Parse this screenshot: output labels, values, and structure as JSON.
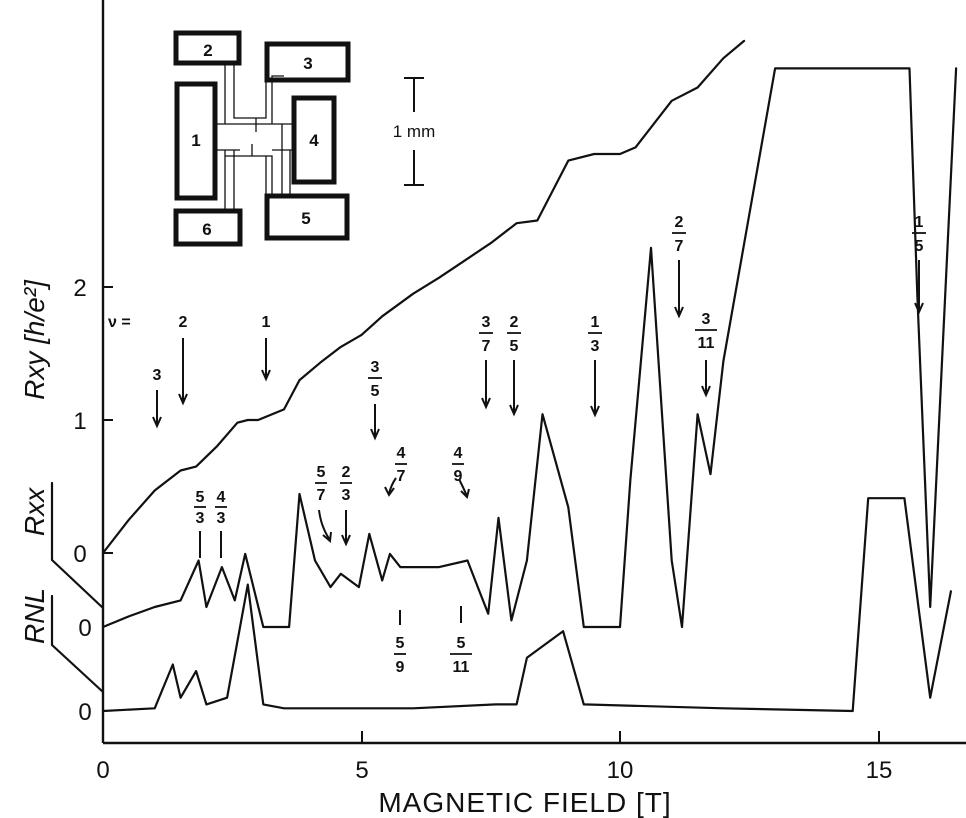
{
  "chart_data": {
    "type": "line",
    "title": "",
    "xlabel": "MAGNETIC FIELD [T]",
    "xlim": [
      0,
      16.5
    ],
    "x_ticks": [
      "0",
      "5",
      "10",
      "15"
    ],
    "ylabels": {
      "rxy": "Rxy [h/e²]",
      "rxx": "Rxx",
      "rnl": "RNL"
    },
    "rxy_ticks": [
      "0",
      "1",
      "2"
    ],
    "rxx_zero_label": "0",
    "rnl_zero_label": "0",
    "series": [
      {
        "name": "Rxy",
        "x": [
          0,
          0.5,
          1.0,
          1.5,
          1.8,
          2.2,
          2.6,
          2.8,
          3.0,
          3.5,
          3.8,
          4.2,
          4.6,
          5.0,
          5.4,
          6.0,
          6.5,
          7.0,
          7.5,
          8.0,
          8.4,
          9.0,
          9.5,
          10.0,
          10.3,
          11.0,
          11.5,
          12.0,
          12.4
        ],
        "y": [
          0,
          0.25,
          0.47,
          0.62,
          0.65,
          0.8,
          0.98,
          1.0,
          1.0,
          1.08,
          1.3,
          1.43,
          1.55,
          1.64,
          1.78,
          1.95,
          2.07,
          2.2,
          2.33,
          2.48,
          2.5,
          2.95,
          3.0,
          3.0,
          3.05,
          3.4,
          3.5,
          3.72,
          3.85
        ]
      },
      {
        "name": "Rxx",
        "x": [
          0,
          0.5,
          1.0,
          1.5,
          1.85,
          2.0,
          2.3,
          2.55,
          2.75,
          3.1,
          3.6,
          3.8,
          4.1,
          4.4,
          4.6,
          4.95,
          5.15,
          5.4,
          5.55,
          5.75,
          6.5,
          7.05,
          7.25,
          7.45,
          7.65,
          7.9,
          8.2,
          8.5,
          9.0,
          9.3,
          10.0,
          10.2,
          10.6,
          11.0,
          11.2,
          11.5,
          11.75,
          12.0,
          13.0,
          15.6,
          15.75,
          16.0,
          16.5
        ],
        "y": [
          0,
          0.08,
          0.15,
          0.2,
          0.5,
          0.15,
          0.45,
          0.2,
          0.55,
          0,
          0,
          1.0,
          0.5,
          0.3,
          0.4,
          0.3,
          0.7,
          0.35,
          0.55,
          0.45,
          0.45,
          0.5,
          0.3,
          0.1,
          0.82,
          0.05,
          0.5,
          1.6,
          0.9,
          0,
          0,
          1.1,
          2.85,
          0.5,
          0,
          1.6,
          1.15,
          2.0,
          4.2,
          4.2,
          2.5,
          0.15,
          4.2
        ]
      },
      {
        "name": "RNL",
        "x": [
          0,
          1.0,
          1.35,
          1.5,
          1.8,
          2.0,
          2.4,
          2.8,
          3.1,
          3.5,
          6.0,
          7.6,
          8.0,
          8.2,
          8.9,
          9.3,
          12.0,
          14.5,
          14.8,
          15.2,
          15.5,
          16.0,
          16.4
        ],
        "y": [
          0,
          0.02,
          0.35,
          0.1,
          0.3,
          0.05,
          0.1,
          0.95,
          0.05,
          0.02,
          0.02,
          0.05,
          0.05,
          0.4,
          0.6,
          0.05,
          0.02,
          0.0,
          1.6,
          1.6,
          1.6,
          0.1,
          0.9
        ]
      }
    ],
    "annotations": {
      "nu_label": "ν =",
      "integer_fillings": [
        "3",
        "2",
        "1"
      ],
      "rxy_fractions": [
        {
          "num": "3",
          "den": "5"
        },
        {
          "num": "3",
          "den": "7"
        },
        {
          "num": "2",
          "den": "5"
        },
        {
          "num": "1",
          "den": "3"
        },
        {
          "num": "2",
          "den": "7"
        },
        {
          "num": "3",
          "den": "11"
        },
        {
          "num": "1",
          "den": "5"
        }
      ],
      "rxx_fractions": [
        {
          "num": "5",
          "den": "3"
        },
        {
          "num": "4",
          "den": "3"
        },
        {
          "num": "5",
          "den": "7"
        },
        {
          "num": "2",
          "den": "3"
        },
        {
          "num": "4",
          "den": "7"
        },
        {
          "num": "4",
          "den": "9"
        },
        {
          "num": "5",
          "den": "9"
        },
        {
          "num": "5",
          "den": "11"
        }
      ]
    },
    "inset": {
      "contacts": [
        "1",
        "2",
        "3",
        "4",
        "5",
        "6"
      ],
      "scale_bar": "1 mm"
    }
  }
}
